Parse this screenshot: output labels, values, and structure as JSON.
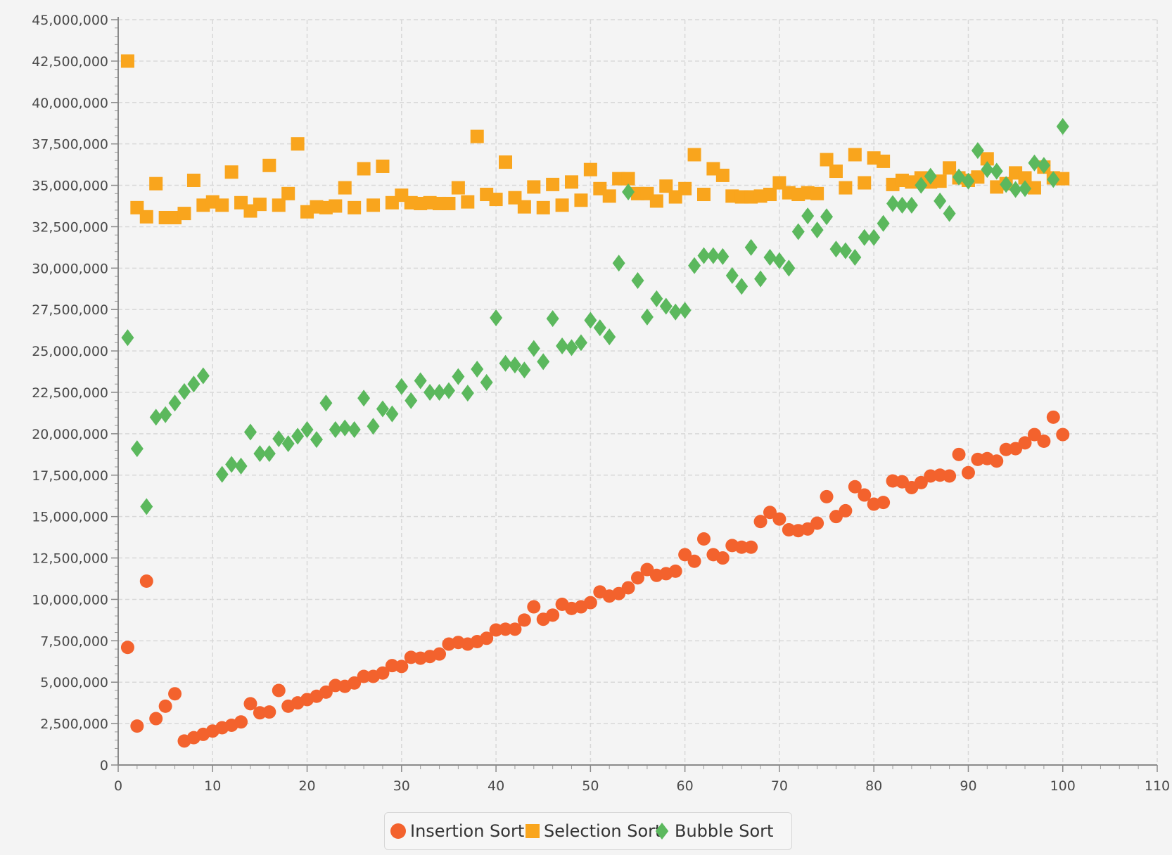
{
  "chart_data": {
    "type": "scatter",
    "title": "",
    "xlabel": "",
    "ylabel": "",
    "xlim": [
      0,
      110
    ],
    "ylim": [
      0,
      45000000
    ],
    "x_ticks": [
      0,
      10,
      20,
      30,
      40,
      50,
      60,
      70,
      80,
      90,
      100,
      110
    ],
    "y_ticks": [
      0,
      2500000,
      5000000,
      7500000,
      10000000,
      12500000,
      15000000,
      17500000,
      20000000,
      22500000,
      25000000,
      27500000,
      30000000,
      32500000,
      35000000,
      37500000,
      40000000,
      42500000,
      45000000
    ],
    "grid": true,
    "legend_position": "bottom",
    "series": [
      {
        "name": "Insertion Sort",
        "color": "#f3622d",
        "marker": "circle",
        "x": [
          1,
          2,
          3,
          4,
          5,
          6,
          7,
          8,
          9,
          10,
          11,
          12,
          13,
          14,
          15,
          16,
          17,
          18,
          19,
          20,
          21,
          22,
          23,
          24,
          25,
          26,
          27,
          28,
          29,
          30,
          31,
          32,
          33,
          34,
          35,
          36,
          37,
          38,
          39,
          40,
          41,
          42,
          43,
          44,
          45,
          46,
          47,
          48,
          49,
          50,
          51,
          52,
          53,
          54,
          55,
          56,
          57,
          58,
          59,
          60,
          61,
          62,
          63,
          64,
          65,
          66,
          67,
          68,
          69,
          70,
          71,
          72,
          73,
          74,
          75,
          76,
          77,
          78,
          79,
          80,
          81,
          82,
          83,
          84,
          85,
          86,
          87,
          88,
          89,
          90,
          91,
          92,
          93,
          94,
          95,
          96,
          97,
          98,
          99,
          100
        ],
        "y": [
          7100000,
          2350000,
          11100000,
          2800000,
          3550000,
          4300000,
          1450000,
          1650000,
          1850000,
          2050000,
          2250000,
          2400000,
          2600000,
          3700000,
          3150000,
          3200000,
          4500000,
          3550000,
          3750000,
          3950000,
          4150000,
          4400000,
          4800000,
          4750000,
          4950000,
          5350000,
          5350000,
          5550000,
          6000000,
          5950000,
          6500000,
          6450000,
          6550000,
          6700000,
          7300000,
          7400000,
          7300000,
          7450000,
          7650000,
          8150000,
          8200000,
          8200000,
          8750000,
          9550000,
          8800000,
          9050000,
          9700000,
          9450000,
          9550000,
          9800000,
          10450000,
          10200000,
          10350000,
          10700000,
          11300000,
          11800000,
          11450000,
          11550000,
          11700000,
          12700000,
          12300000,
          13650000,
          12700000,
          12500000,
          13250000,
          13150000,
          13150000,
          14700000,
          15250000,
          14850000,
          14200000,
          14150000,
          14250000,
          14600000,
          16200000,
          15000000,
          15350000,
          16800000,
          16300000,
          15750000,
          15850000,
          17150000,
          17100000,
          16750000,
          17050000,
          17450000,
          17500000,
          17450000,
          18750000,
          17650000,
          18450000,
          18500000,
          18350000,
          19050000,
          19100000,
          19450000,
          19950000,
          19550000,
          21000000,
          19950000
        ]
      },
      {
        "name": "Selection Sort",
        "color": "#f9a51d",
        "marker": "square",
        "x": [
          1,
          2,
          3,
          4,
          5,
          6,
          7,
          8,
          9,
          10,
          11,
          12,
          13,
          14,
          15,
          16,
          17,
          18,
          19,
          20,
          21,
          22,
          23,
          24,
          25,
          26,
          27,
          28,
          29,
          30,
          31,
          32,
          33,
          34,
          35,
          36,
          37,
          38,
          39,
          40,
          41,
          42,
          43,
          44,
          45,
          46,
          47,
          48,
          49,
          50,
          51,
          52,
          53,
          54,
          55,
          56,
          57,
          58,
          59,
          60,
          61,
          62,
          63,
          64,
          65,
          66,
          67,
          68,
          69,
          70,
          71,
          72,
          73,
          74,
          75,
          76,
          77,
          78,
          79,
          80,
          81,
          82,
          83,
          84,
          85,
          86,
          87,
          88,
          89,
          90,
          91,
          92,
          93,
          94,
          95,
          96,
          97,
          98,
          99,
          100
        ],
        "y": [
          42500000,
          33650000,
          33100000,
          35100000,
          33050000,
          33050000,
          33300000,
          35300000,
          33800000,
          34000000,
          33800000,
          35800000,
          33950000,
          33450000,
          33850000,
          36200000,
          33800000,
          34500000,
          37500000,
          33400000,
          33700000,
          33650000,
          33750000,
          34850000,
          33650000,
          36000000,
          33800000,
          36150000,
          33950000,
          34400000,
          33950000,
          33900000,
          33950000,
          33900000,
          33900000,
          34850000,
          34000000,
          37950000,
          34450000,
          34150000,
          36400000,
          34250000,
          33700000,
          34900000,
          33650000,
          35050000,
          33800000,
          35200000,
          34100000,
          35950000,
          34800000,
          34350000,
          35400000,
          35400000,
          34500000,
          34500000,
          34050000,
          34950000,
          34300000,
          34800000,
          36850000,
          34450000,
          36000000,
          35600000,
          34350000,
          34300000,
          34300000,
          34350000,
          34450000,
          35150000,
          34550000,
          34450000,
          34550000,
          34500000,
          36550000,
          35850000,
          34850000,
          36850000,
          35150000,
          36650000,
          36450000,
          35050000,
          35300000,
          35200000,
          35450000,
          35200000,
          35250000,
          36050000,
          35450000,
          35300000,
          35500000,
          36600000,
          34900000,
          35100000,
          35750000,
          35450000,
          34850000,
          36100000,
          35450000,
          35400000
        ]
      },
      {
        "name": "Bubble Sort",
        "color": "#5bb85d",
        "marker": "diamond",
        "x": [
          1,
          2,
          3,
          4,
          5,
          6,
          7,
          8,
          9,
          11,
          12,
          13,
          14,
          15,
          16,
          17,
          18,
          19,
          20,
          21,
          22,
          23,
          24,
          25,
          26,
          27,
          28,
          29,
          30,
          31,
          32,
          33,
          34,
          35,
          36,
          37,
          38,
          39,
          40,
          41,
          42,
          43,
          44,
          45,
          46,
          47,
          48,
          49,
          50,
          51,
          52,
          53,
          54,
          55,
          56,
          57,
          58,
          59,
          60,
          61,
          62,
          63,
          64,
          65,
          66,
          67,
          68,
          69,
          70,
          71,
          72,
          73,
          74,
          75,
          76,
          77,
          78,
          79,
          80,
          81,
          82,
          83,
          84,
          85,
          86,
          87,
          88,
          89,
          90,
          91,
          92,
          93,
          94,
          95,
          96,
          97,
          98,
          99,
          100
        ],
        "y": [
          25800000,
          19100000,
          15600000,
          21000000,
          21150000,
          21850000,
          22550000,
          23000000,
          23500000,
          17550000,
          18150000,
          18050000,
          20100000,
          18800000,
          18800000,
          19700000,
          19400000,
          19850000,
          20250000,
          19650000,
          21850000,
          20250000,
          20350000,
          20250000,
          22150000,
          20450000,
          21500000,
          21200000,
          22850000,
          22000000,
          23200000,
          22500000,
          22500000,
          22600000,
          23450000,
          22450000,
          23900000,
          23100000,
          27000000,
          24250000,
          24150000,
          23850000,
          25150000,
          24350000,
          26950000,
          25300000,
          25200000,
          25500000,
          26850000,
          26400000,
          25850000,
          30300000,
          34600000,
          29250000,
          27050000,
          28150000,
          27700000,
          27350000,
          27450000,
          30150000,
          30750000,
          30750000,
          30700000,
          29550000,
          28900000,
          31250000,
          29350000,
          30650000,
          30450000,
          30000000,
          32200000,
          33150000,
          32300000,
          33100000,
          31150000,
          31050000,
          30650000,
          31850000,
          31850000,
          32700000,
          33900000,
          33800000,
          33800000,
          35000000,
          35550000,
          34050000,
          33300000,
          35500000,
          35250000,
          37100000,
          35950000,
          35850000,
          35050000,
          34750000,
          34800000,
          36350000,
          36200000,
          35350000,
          38550000
        ]
      }
    ]
  }
}
